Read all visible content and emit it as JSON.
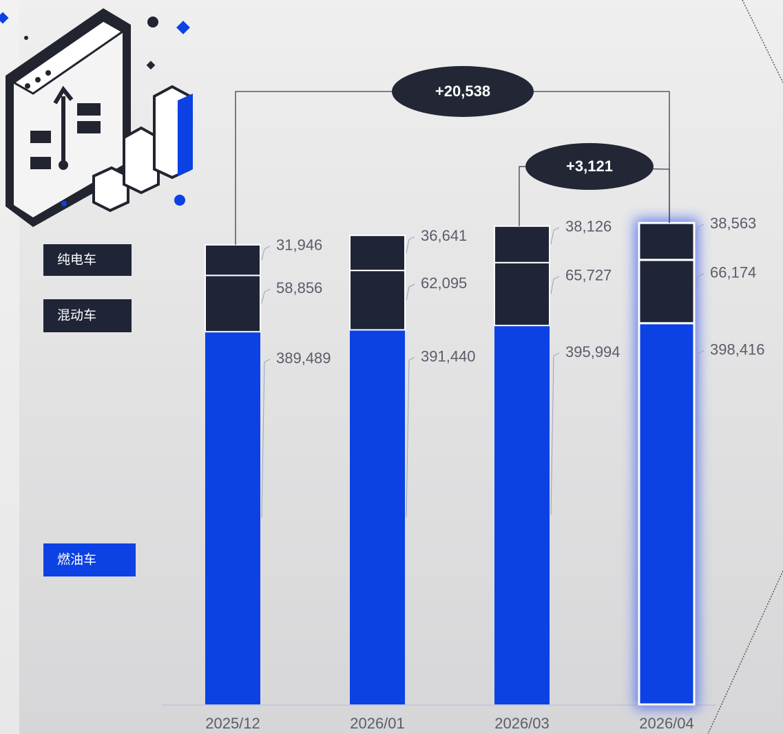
{
  "chart_data": {
    "type": "stacked-bar",
    "categories": [
      "2025/12",
      "2026/01",
      "2026/03",
      "2026/04"
    ],
    "series": [
      {
        "name": "燃油车",
        "color": "#0c41e3",
        "values": [
          389489,
          391440,
          395994,
          398416
        ],
        "value_labels": [
          "389,489",
          "391,440",
          "395,994",
          "398,416"
        ]
      },
      {
        "name": "混动车",
        "color": "#1f2436",
        "values": [
          58856,
          62095,
          65727,
          66174
        ],
        "value_labels": [
          "58,856",
          "62,095",
          "65,727",
          "66,174"
        ]
      },
      {
        "name": "纯电车",
        "color": "#1f2436",
        "values": [
          31946,
          36641,
          38126,
          38563
        ],
        "value_labels": [
          "31,946",
          "36,641",
          "38,126",
          "38,563"
        ]
      }
    ],
    "annotations": [
      "+20,538",
      "+3,121"
    ]
  }
}
